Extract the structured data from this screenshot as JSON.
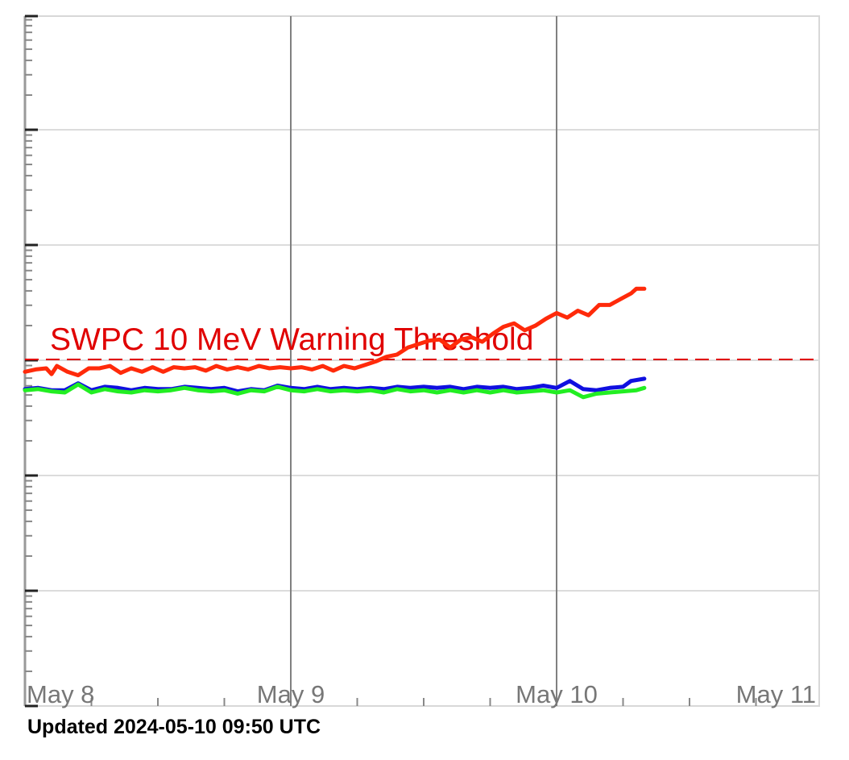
{
  "chart_data": {
    "type": "line",
    "title": "",
    "xlabel": "",
    "ylabel": "",
    "x_ticks": [
      "May 8",
      "May 9",
      "May 10",
      "May 11"
    ],
    "x_range_days": [
      8,
      11
    ],
    "y_scale": "log",
    "y_decades": 6,
    "threshold": {
      "label": "SWPC 10 MeV Warning Threshold",
      "color": "#e00000",
      "style": "dashed"
    },
    "series": [
      {
        "color": "#ff2a0a",
        "values": [
          [
            8.0,
            2.9
          ],
          [
            8.04,
            2.92
          ],
          [
            8.08,
            2.93
          ],
          [
            8.1,
            2.88
          ],
          [
            8.12,
            2.95
          ],
          [
            8.16,
            2.9
          ],
          [
            8.2,
            2.87
          ],
          [
            8.24,
            2.93
          ],
          [
            8.28,
            2.93
          ],
          [
            8.32,
            2.95
          ],
          [
            8.36,
            2.89
          ],
          [
            8.4,
            2.93
          ],
          [
            8.44,
            2.9
          ],
          [
            8.48,
            2.94
          ],
          [
            8.52,
            2.9
          ],
          [
            8.56,
            2.94
          ],
          [
            8.6,
            2.93
          ],
          [
            8.64,
            2.94
          ],
          [
            8.68,
            2.91
          ],
          [
            8.72,
            2.95
          ],
          [
            8.76,
            2.92
          ],
          [
            8.8,
            2.94
          ],
          [
            8.84,
            2.92
          ],
          [
            8.88,
            2.95
          ],
          [
            8.92,
            2.93
          ],
          [
            8.96,
            2.94
          ],
          [
            9.0,
            2.93
          ],
          [
            9.04,
            2.94
          ],
          [
            9.08,
            2.92
          ],
          [
            9.12,
            2.95
          ],
          [
            9.16,
            2.91
          ],
          [
            9.2,
            2.95
          ],
          [
            9.24,
            2.93
          ],
          [
            9.28,
            2.96
          ],
          [
            9.32,
            2.99
          ],
          [
            9.36,
            3.03
          ],
          [
            9.4,
            3.05
          ],
          [
            9.44,
            3.11
          ],
          [
            9.48,
            3.14
          ],
          [
            9.52,
            3.17
          ],
          [
            9.56,
            3.18
          ],
          [
            9.6,
            3.11
          ],
          [
            9.64,
            3.18
          ],
          [
            9.68,
            3.2
          ],
          [
            9.72,
            3.16
          ],
          [
            9.76,
            3.23
          ],
          [
            9.8,
            3.29
          ],
          [
            9.84,
            3.32
          ],
          [
            9.88,
            3.26
          ],
          [
            9.92,
            3.3
          ],
          [
            9.96,
            3.36
          ],
          [
            10.0,
            3.41
          ],
          [
            10.04,
            3.37
          ],
          [
            10.08,
            3.43
          ],
          [
            10.12,
            3.39
          ],
          [
            10.16,
            3.48
          ],
          [
            10.2,
            3.48
          ],
          [
            10.24,
            3.53
          ],
          [
            10.28,
            3.58
          ],
          [
            10.3,
            3.62
          ],
          [
            10.33,
            3.62
          ]
        ]
      },
      {
        "color": "#1010e0",
        "values": [
          [
            8.0,
            2.75
          ],
          [
            8.05,
            2.76
          ],
          [
            8.1,
            2.74
          ],
          [
            8.15,
            2.74
          ],
          [
            8.2,
            2.8
          ],
          [
            8.25,
            2.74
          ],
          [
            8.3,
            2.77
          ],
          [
            8.35,
            2.76
          ],
          [
            8.4,
            2.74
          ],
          [
            8.45,
            2.76
          ],
          [
            8.5,
            2.75
          ],
          [
            8.55,
            2.75
          ],
          [
            8.6,
            2.77
          ],
          [
            8.65,
            2.76
          ],
          [
            8.7,
            2.75
          ],
          [
            8.75,
            2.76
          ],
          [
            8.8,
            2.73
          ],
          [
            8.85,
            2.75
          ],
          [
            8.9,
            2.74
          ],
          [
            8.95,
            2.78
          ],
          [
            9.0,
            2.76
          ],
          [
            9.05,
            2.75
          ],
          [
            9.1,
            2.77
          ],
          [
            9.15,
            2.75
          ],
          [
            9.2,
            2.76
          ],
          [
            9.25,
            2.75
          ],
          [
            9.3,
            2.76
          ],
          [
            9.35,
            2.75
          ],
          [
            9.4,
            2.77
          ],
          [
            9.45,
            2.76
          ],
          [
            9.5,
            2.77
          ],
          [
            9.55,
            2.76
          ],
          [
            9.6,
            2.77
          ],
          [
            9.65,
            2.75
          ],
          [
            9.7,
            2.77
          ],
          [
            9.75,
            2.76
          ],
          [
            9.8,
            2.77
          ],
          [
            9.85,
            2.75
          ],
          [
            9.9,
            2.76
          ],
          [
            9.95,
            2.78
          ],
          [
            10.0,
            2.76
          ],
          [
            10.05,
            2.82
          ],
          [
            10.1,
            2.75
          ],
          [
            10.15,
            2.74
          ],
          [
            10.2,
            2.76
          ],
          [
            10.25,
            2.77
          ],
          [
            10.28,
            2.82
          ],
          [
            10.33,
            2.84
          ]
        ]
      },
      {
        "color": "#22ee22",
        "values": [
          [
            8.0,
            2.74
          ],
          [
            8.05,
            2.75
          ],
          [
            8.1,
            2.73
          ],
          [
            8.15,
            2.72
          ],
          [
            8.2,
            2.79
          ],
          [
            8.25,
            2.72
          ],
          [
            8.3,
            2.75
          ],
          [
            8.35,
            2.73
          ],
          [
            8.4,
            2.72
          ],
          [
            8.45,
            2.74
          ],
          [
            8.5,
            2.73
          ],
          [
            8.55,
            2.74
          ],
          [
            8.6,
            2.76
          ],
          [
            8.65,
            2.74
          ],
          [
            8.7,
            2.73
          ],
          [
            8.75,
            2.74
          ],
          [
            8.8,
            2.71
          ],
          [
            8.85,
            2.74
          ],
          [
            8.9,
            2.73
          ],
          [
            8.95,
            2.77
          ],
          [
            9.0,
            2.74
          ],
          [
            9.05,
            2.73
          ],
          [
            9.1,
            2.75
          ],
          [
            9.15,
            2.73
          ],
          [
            9.2,
            2.74
          ],
          [
            9.25,
            2.73
          ],
          [
            9.3,
            2.74
          ],
          [
            9.35,
            2.72
          ],
          [
            9.4,
            2.75
          ],
          [
            9.45,
            2.73
          ],
          [
            9.5,
            2.74
          ],
          [
            9.55,
            2.72
          ],
          [
            9.6,
            2.74
          ],
          [
            9.65,
            2.72
          ],
          [
            9.7,
            2.74
          ],
          [
            9.75,
            2.72
          ],
          [
            9.8,
            2.74
          ],
          [
            9.85,
            2.72
          ],
          [
            9.9,
            2.73
          ],
          [
            9.95,
            2.74
          ],
          [
            10.0,
            2.72
          ],
          [
            10.05,
            2.74
          ],
          [
            10.1,
            2.68
          ],
          [
            10.15,
            2.71
          ],
          [
            10.2,
            2.72
          ],
          [
            10.25,
            2.73
          ],
          [
            10.3,
            2.74
          ],
          [
            10.33,
            2.76
          ]
        ]
      }
    ]
  },
  "footer": {
    "updated": "Updated 2024-05-10 09:50 UTC"
  }
}
